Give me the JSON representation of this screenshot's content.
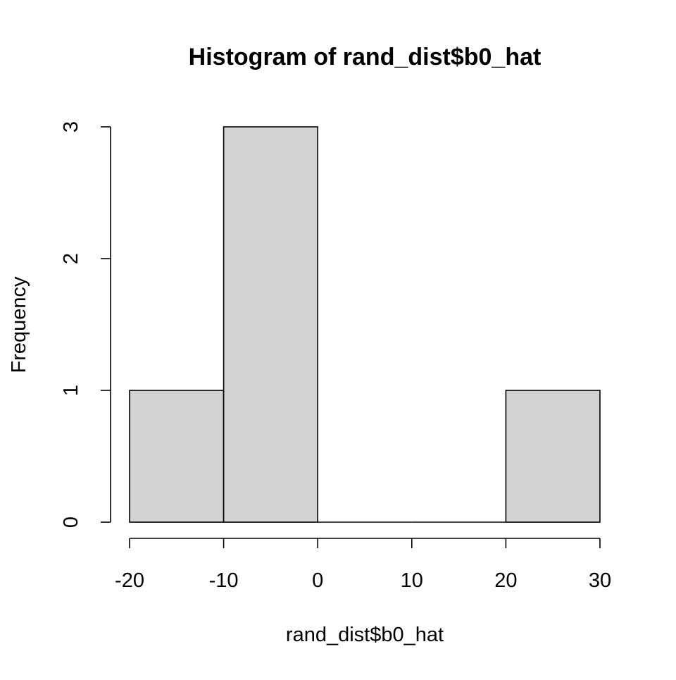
{
  "chart_data": {
    "type": "bar",
    "title": "Histogram of rand_dist$b0_hat",
    "xlabel": "rand_dist$b0_hat",
    "ylabel": "Frequency",
    "bins": [
      {
        "start": -20,
        "end": -10,
        "count": 1
      },
      {
        "start": -10,
        "end": 0,
        "count": 3
      },
      {
        "start": 0,
        "end": 10,
        "count": 0
      },
      {
        "start": 10,
        "end": 20,
        "count": 0
      },
      {
        "start": 20,
        "end": 30,
        "count": 1
      }
    ],
    "xlim": [
      -20,
      30
    ],
    "ylim": [
      0,
      3
    ],
    "x_ticks": [
      -20,
      -10,
      0,
      10,
      20,
      30
    ],
    "x_tick_labels": [
      "-20",
      "-10",
      "0",
      "10",
      "20",
      "30"
    ],
    "y_ticks": [
      0,
      1,
      2,
      3
    ],
    "y_tick_labels": [
      "0",
      "1",
      "2",
      "3"
    ],
    "bar_fill": "#d3d3d3",
    "bar_stroke": "#000000",
    "grid": false
  }
}
